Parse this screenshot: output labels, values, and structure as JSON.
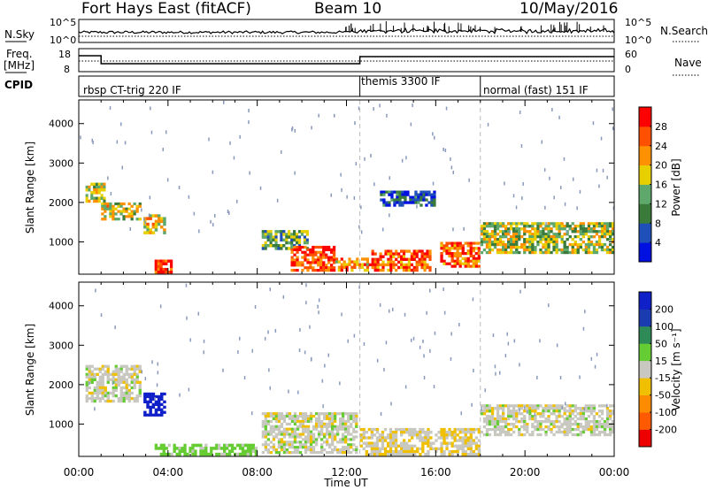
{
  "header": {
    "station": "Fort Hays East (fitACF)",
    "beam": "Beam 10",
    "date": "10/May/2016"
  },
  "status_panel": {
    "left_labels": {
      "nsky": "N.Sky",
      "freq_line1": "Freq.",
      "freq_line2": "[MHz]",
      "cpid": "CPID"
    },
    "right_labels": {
      "nsearch": "N.Search",
      "nave": "Nave"
    },
    "nsky_ticks": [
      "10^5",
      "10^0"
    ],
    "nsearch_ticks": [
      "10^5",
      "10^0"
    ],
    "freq_ticks": [
      "18",
      "8"
    ],
    "nave_ticks": [
      "60",
      "0"
    ]
  },
  "cpid_segments": [
    {
      "label": "rbsp CT-trig 220 IF",
      "start_h": 0.0
    },
    {
      "label": "themis 3300 IF",
      "start_h": 12.6
    },
    {
      "label": "normal (fast) 151 IF",
      "start_h": 18.0
    }
  ],
  "colors": {
    "power_bar": [
      "#0010e0",
      "#1f4fb8",
      "#3a7a3a",
      "#5fa86b",
      "#e8d000",
      "#ff9000",
      "#ff5000",
      "#ff0000"
    ],
    "velocity_bar": [
      "#ee0000",
      "#ff5a00",
      "#ff8c00",
      "#f0c000",
      "#c8c8c0",
      "#66cc33",
      "#2e8b57",
      "#1a3cb0",
      "#1020c8"
    ],
    "ground_scatter": "#c8c8c0"
  },
  "chart_data": [
    {
      "type": "heatmap",
      "panel": "power",
      "x_ticks": [
        "00:00",
        "04:00",
        "08:00",
        "12:00",
        "16:00",
        "20:00",
        "00:00"
      ],
      "xlim_h": [
        0,
        24
      ],
      "ylabel": "Slant Range [km]",
      "y_ticks": [
        1000,
        2000,
        3000,
        4000
      ],
      "ylim": [
        180,
        4600
      ],
      "colorbar": {
        "label": "Power [dB]",
        "ticks": [
          4,
          8,
          12,
          16,
          20,
          24,
          28
        ],
        "range": [
          0,
          32
        ]
      },
      "regions": [
        {
          "t0": 0.3,
          "t1": 1.2,
          "r0": 2000,
          "r1": 2500,
          "level": 0.5
        },
        {
          "t0": 1.0,
          "t1": 2.8,
          "r0": 1550,
          "r1": 2000,
          "level": 0.55
        },
        {
          "t0": 2.9,
          "t1": 3.9,
          "r0": 1200,
          "r1": 1700,
          "level": 0.6
        },
        {
          "t0": 3.4,
          "t1": 4.2,
          "r0": 200,
          "r1": 550,
          "level": 0.9
        },
        {
          "t0": 8.2,
          "t1": 10.3,
          "r0": 800,
          "r1": 1300,
          "level": 0.4
        },
        {
          "t0": 9.5,
          "t1": 11.5,
          "r0": 250,
          "r1": 900,
          "level": 0.85
        },
        {
          "t0": 11.5,
          "t1": 13.0,
          "r0": 250,
          "r1": 600,
          "level": 0.7
        },
        {
          "t0": 13.0,
          "t1": 15.8,
          "r0": 250,
          "r1": 800,
          "level": 0.8
        },
        {
          "t0": 13.5,
          "t1": 16.0,
          "r0": 1900,
          "r1": 2300,
          "level": 0.2
        },
        {
          "t0": 16.2,
          "t1": 18.0,
          "r0": 350,
          "r1": 1000,
          "level": 0.8
        },
        {
          "t0": 18.0,
          "t1": 24.0,
          "r0": 700,
          "r1": 1500,
          "level": 0.5
        }
      ]
    },
    {
      "type": "heatmap",
      "panel": "velocity",
      "x_ticks": [
        "00:00",
        "04:00",
        "08:00",
        "12:00",
        "16:00",
        "20:00",
        "00:00"
      ],
      "xlim_h": [
        0,
        24
      ],
      "xlabel": "Time UT",
      "ylabel": "Slant Range [km]",
      "y_ticks": [
        1000,
        2000,
        3000,
        4000
      ],
      "ylim": [
        180,
        4600
      ],
      "colorbar": {
        "label": "Velocity [m s⁻¹]",
        "ticks": [
          200,
          100,
          50,
          15,
          -15,
          -50,
          -100,
          -200
        ],
        "range": [
          -250,
          250
        ]
      },
      "regions": [
        {
          "t0": 0.3,
          "t1": 2.8,
          "r0": 1550,
          "r1": 2500,
          "vel": 0
        },
        {
          "t0": 2.9,
          "t1": 3.9,
          "r0": 1200,
          "r1": 1800,
          "vel": 180
        },
        {
          "t0": 3.4,
          "t1": 8.0,
          "r0": 200,
          "r1": 500,
          "vel": 30
        },
        {
          "t0": 8.2,
          "t1": 12.5,
          "r0": 250,
          "r1": 1300,
          "vel": 0
        },
        {
          "t0": 12.6,
          "t1": 18.0,
          "r0": 200,
          "r1": 900,
          "vel": -10
        },
        {
          "t0": 18.0,
          "t1": 24.0,
          "r0": 700,
          "r1": 1500,
          "vel": 0
        }
      ]
    }
  ]
}
